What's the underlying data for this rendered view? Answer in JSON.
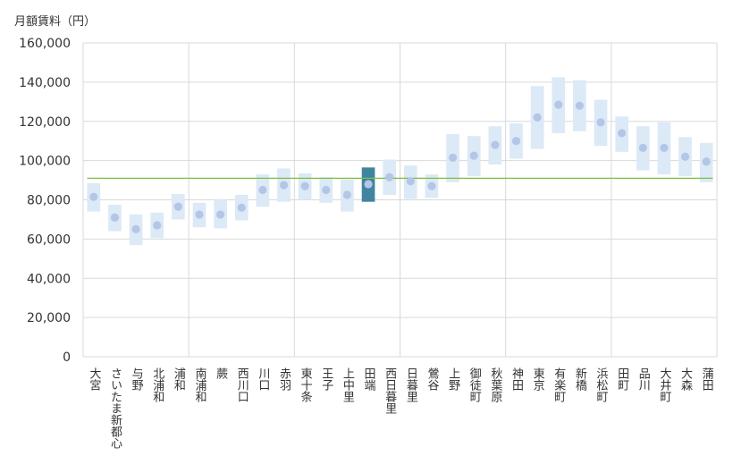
{
  "chart_data": {
    "type": "range-bar",
    "title": "",
    "ylabel": "月額賃料（円）",
    "xlabel": "",
    "ylim": [
      0,
      160000
    ],
    "yticks": [
      0,
      20000,
      40000,
      60000,
      80000,
      100000,
      120000,
      140000,
      160000
    ],
    "ytick_labels": [
      "0",
      "20,000",
      "40,000",
      "60,000",
      "80,000",
      "100,000",
      "120,000",
      "140,000",
      "160,000"
    ],
    "reference_line": 91000,
    "highlight_index": 13,
    "group_separators_after": [
      4,
      9,
      14,
      19,
      24
    ],
    "colors": {
      "range": "#dce9f6",
      "highlight_range": "#41849f",
      "point": "#b4c6e7",
      "reference_line": "#7bc043",
      "grid": "#d9d9d9"
    },
    "categories": [
      "大宮",
      "さいたま新都心",
      "与野",
      "北浦和",
      "浦和",
      "南浦和",
      "蕨",
      "西川口",
      "川口",
      "赤羽",
      "東十条",
      "王子",
      "上中里",
      "田端",
      "西日暮里",
      "日暮里",
      "鶯谷",
      "上野",
      "御徒町",
      "秋葉原",
      "神田",
      "東京",
      "有楽町",
      "新橋",
      "浜松町",
      "田町",
      "品川",
      "大井町",
      "大森",
      "蒲田"
    ],
    "series": [
      {
        "name": "low",
        "values": [
          74000,
          64000,
          57000,
          60500,
          70000,
          66000,
          65500,
          69500,
          76500,
          79000,
          80000,
          78500,
          74000,
          79000,
          82500,
          80500,
          81000,
          89000,
          92000,
          98000,
          101000,
          106000,
          114000,
          115000,
          107500,
          104500,
          95000,
          93000,
          92000,
          89000
        ]
      },
      {
        "name": "high",
        "values": [
          88500,
          77500,
          72500,
          73500,
          83000,
          78500,
          80000,
          82500,
          93000,
          96000,
          93500,
          91500,
          90500,
          96500,
          100500,
          97500,
          93000,
          113500,
          112500,
          117500,
          119000,
          138000,
          142500,
          141000,
          131000,
          122500,
          117500,
          119500,
          112000,
          109000
        ]
      },
      {
        "name": "average",
        "values": [
          81500,
          71000,
          65000,
          67000,
          76500,
          72500,
          72500,
          76000,
          85000,
          87500,
          87000,
          85000,
          82500,
          88000,
          91500,
          89500,
          87000,
          101500,
          102500,
          108000,
          110000,
          122000,
          128500,
          128000,
          119500,
          114000,
          106500,
          106500,
          102000,
          99500
        ]
      }
    ]
  }
}
